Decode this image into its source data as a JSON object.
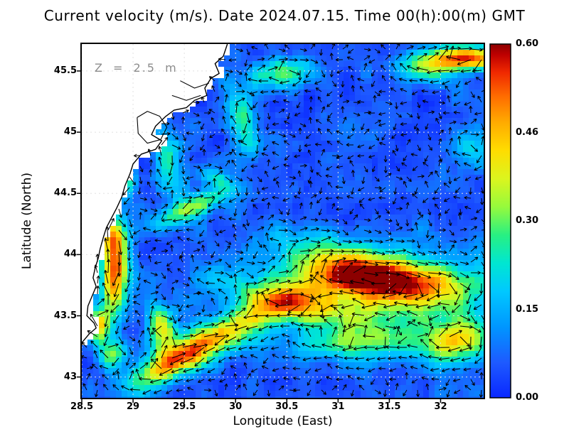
{
  "chart_data": {
    "type": "heatmap",
    "title": "Current velocity (m/s). Date 2024.07.15. Time 00(h):00(m) GMT",
    "variable": "Current velocity",
    "units": "m/s",
    "date": "2024.07.15",
    "time_gmt": "00(h):00(m)",
    "depth_annotation": "Z = 2.5 m",
    "xlabel": "Longitude (East)",
    "ylabel": "Latitude (North)",
    "xlim": [
      28.5,
      32.42
    ],
    "ylim": [
      42.83,
      45.72
    ],
    "xtick_values": [
      28.5,
      29,
      29.5,
      30,
      30.5,
      31,
      31.5,
      32
    ],
    "xtick_labels": [
      "28.5",
      "29",
      "29.5",
      "30",
      "30.5",
      "31",
      "31.5",
      "32"
    ],
    "ytick_values": [
      43,
      43.5,
      44,
      44.5,
      45,
      45.5
    ],
    "ytick_labels": [
      "43",
      "43.5",
      "44",
      "44.5",
      "45",
      "45.5"
    ],
    "grid_style": "dotted",
    "overlay": "current direction vector arrows",
    "colorbar": {
      "min": 0.0,
      "max": 0.6,
      "tick_labels_top_to_bottom": [
        "0.60",
        "0.46",
        "0.30",
        "0.15",
        "0.00"
      ],
      "palette": "jet",
      "palette_stops": [
        {
          "t": 0.0,
          "c": "#0a28ff"
        },
        {
          "t": 0.1,
          "c": "#1e5aff"
        },
        {
          "t": 0.2,
          "c": "#0096ff"
        },
        {
          "t": 0.3,
          "c": "#00c8ff"
        },
        {
          "t": 0.38,
          "c": "#00e6d2"
        },
        {
          "t": 0.46,
          "c": "#28f082"
        },
        {
          "t": 0.54,
          "c": "#96fa3c"
        },
        {
          "t": 0.62,
          "c": "#dcf51e"
        },
        {
          "t": 0.7,
          "c": "#ffdc00"
        },
        {
          "t": 0.78,
          "c": "#ffaa00"
        },
        {
          "t": 0.85,
          "c": "#ff6e00"
        },
        {
          "t": 0.92,
          "c": "#f02800"
        },
        {
          "t": 0.97,
          "c": "#be0000"
        },
        {
          "t": 1.0,
          "c": "#8c0000"
        }
      ]
    },
    "background_speed": 0.05,
    "noise_amp": 0.13,
    "features": [
      {
        "lon": 31.45,
        "lat": 43.8,
        "sx": 0.5,
        "sy": 0.11,
        "rot": -4,
        "amp": 0.45
      },
      {
        "lon": 31.4,
        "lat": 43.78,
        "sx": 0.85,
        "sy": 0.25,
        "rot": -4,
        "amp": 0.18
      },
      {
        "lon": 30.55,
        "lat": 43.6,
        "sx": 0.5,
        "sy": 0.1,
        "rot": -12,
        "amp": 0.25
      },
      {
        "lon": 29.9,
        "lat": 43.37,
        "sx": 0.6,
        "sy": 0.1,
        "rot": 22,
        "amp": 0.32
      },
      {
        "lon": 29.42,
        "lat": 43.12,
        "sx": 0.3,
        "sy": 0.09,
        "rot": 25,
        "amp": 0.3
      },
      {
        "lon": 28.82,
        "lat": 44.05,
        "sx": 0.09,
        "sy": 0.22,
        "rot": 12,
        "amp": 0.48
      },
      {
        "lon": 28.8,
        "lat": 43.7,
        "sx": 0.08,
        "sy": 0.16,
        "rot": 5,
        "amp": 0.3
      },
      {
        "lon": 28.66,
        "lat": 43.42,
        "sx": 0.08,
        "sy": 0.1,
        "rot": 0,
        "amp": 0.36
      },
      {
        "lon": 28.8,
        "lat": 43.18,
        "sx": 0.1,
        "sy": 0.08,
        "rot": 0,
        "amp": 0.26
      },
      {
        "lon": 29.28,
        "lat": 43.42,
        "sx": 0.1,
        "sy": 0.14,
        "rot": 30,
        "amp": 0.32
      },
      {
        "lon": 32.25,
        "lat": 45.6,
        "sx": 0.28,
        "sy": 0.07,
        "rot": 2,
        "amp": 0.5
      },
      {
        "lon": 31.85,
        "lat": 45.5,
        "sx": 0.22,
        "sy": 0.08,
        "rot": -12,
        "amp": 0.2
      },
      {
        "lon": 30.45,
        "lat": 45.48,
        "sx": 0.2,
        "sy": 0.09,
        "rot": 8,
        "amp": 0.26
      },
      {
        "lon": 30.05,
        "lat": 45.12,
        "sx": 0.09,
        "sy": 0.22,
        "rot": 18,
        "amp": 0.24
      },
      {
        "lon": 29.55,
        "lat": 44.37,
        "sx": 0.3,
        "sy": 0.07,
        "rot": 20,
        "amp": 0.28
      },
      {
        "lon": 29.8,
        "lat": 44.62,
        "sx": 0.14,
        "sy": 0.05,
        "rot": -25,
        "amp": 0.16
      },
      {
        "lon": 31.3,
        "lat": 43.28,
        "sx": 0.55,
        "sy": 0.1,
        "rot": 2,
        "amp": 0.2
      },
      {
        "lon": 32.15,
        "lat": 43.28,
        "sx": 0.2,
        "sy": 0.12,
        "rot": 10,
        "amp": 0.3
      },
      {
        "lon": 32.32,
        "lat": 44.88,
        "sx": 0.14,
        "sy": 0.1,
        "rot": 0,
        "amp": 0.18
      },
      {
        "lon": 31.55,
        "lat": 43.55,
        "sx": 0.5,
        "sy": 0.13,
        "rot": 0,
        "amp": 0.12
      },
      {
        "lon": 30.9,
        "lat": 44.0,
        "sx": 0.35,
        "sy": 0.12,
        "rot": -20,
        "amp": 0.14
      },
      {
        "lon": 29.35,
        "lat": 44.75,
        "sx": 0.1,
        "sy": 0.18,
        "rot": 10,
        "amp": 0.2
      },
      {
        "lon": 28.95,
        "lat": 44.62,
        "sx": 0.07,
        "sy": 0.1,
        "rot": 0,
        "amp": 0.22
      }
    ],
    "coastline": [
      [
        29.92,
        45.72
      ],
      [
        29.88,
        45.62
      ],
      [
        29.8,
        45.56
      ],
      [
        29.84,
        45.48
      ],
      [
        29.76,
        45.44
      ],
      [
        29.7,
        45.36
      ],
      [
        29.72,
        45.3
      ],
      [
        29.6,
        45.26
      ],
      [
        29.52,
        45.2
      ],
      [
        29.4,
        45.18
      ],
      [
        29.32,
        45.13
      ],
      [
        29.22,
        45.05
      ],
      [
        29.18,
        44.98
      ],
      [
        29.28,
        44.93
      ],
      [
        29.22,
        44.86
      ],
      [
        29.08,
        44.82
      ],
      [
        29.0,
        44.74
      ],
      [
        28.97,
        44.66
      ],
      [
        28.92,
        44.56
      ],
      [
        28.89,
        44.47
      ],
      [
        28.84,
        44.38
      ],
      [
        28.79,
        44.3
      ],
      [
        28.74,
        44.22
      ],
      [
        28.71,
        44.14
      ],
      [
        28.68,
        44.05
      ],
      [
        28.66,
        43.97
      ],
      [
        28.63,
        43.89
      ],
      [
        28.61,
        43.81
      ],
      [
        28.64,
        43.74
      ],
      [
        28.6,
        43.66
      ],
      [
        28.56,
        43.58
      ],
      [
        28.55,
        43.5
      ],
      [
        28.62,
        43.44
      ],
      [
        28.64,
        43.4
      ],
      [
        28.57,
        43.35
      ],
      [
        28.53,
        43.31
      ],
      [
        28.5,
        43.28
      ]
    ],
    "inland_waters": [
      [
        [
          29.04,
          45.12
        ],
        [
          29.14,
          45.17
        ],
        [
          29.26,
          45.13
        ],
        [
          29.33,
          45.04
        ],
        [
          29.27,
          44.94
        ],
        [
          29.14,
          44.91
        ],
        [
          29.05,
          44.99
        ],
        [
          29.04,
          45.12
        ]
      ],
      [
        [
          29.46,
          45.42
        ],
        [
          29.6,
          45.36
        ],
        [
          29.74,
          45.4
        ]
      ],
      [
        [
          29.38,
          45.3
        ],
        [
          29.52,
          45.26
        ],
        [
          29.66,
          45.3
        ]
      ]
    ]
  },
  "colors": {
    "background": "#ffffff",
    "land": "#ffffff",
    "coast": "#000000",
    "arrows": "#000000",
    "grid": "#e0e0e0",
    "frame": "#000000",
    "annotation_text": "#8c8c8c"
  }
}
